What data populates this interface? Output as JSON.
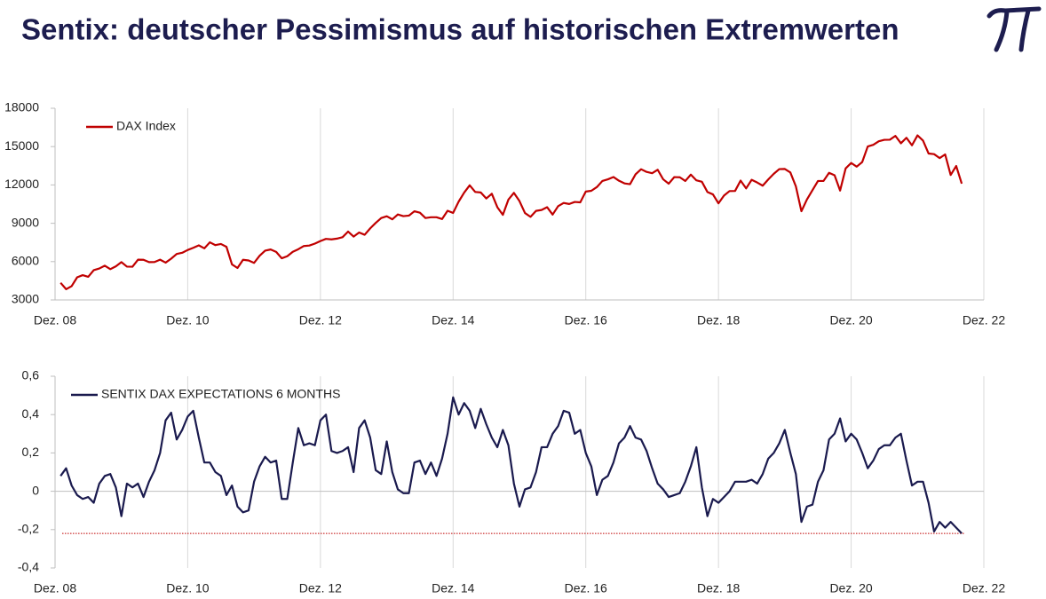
{
  "title": "Sentix: deutscher Pessimismus auf historischen Extremwerten",
  "chart_data": [
    {
      "type": "line",
      "x": [
        "2009-01",
        "2009-02",
        "2009-03",
        "2009-04",
        "2009-05",
        "2009-06",
        "2009-07",
        "2009-08",
        "2009-09",
        "2009-10",
        "2009-11",
        "2009-12",
        "2010-01",
        "2010-02",
        "2010-03",
        "2010-04",
        "2010-05",
        "2010-06",
        "2010-07",
        "2010-08",
        "2010-09",
        "2010-10",
        "2010-11",
        "2010-12",
        "2011-01",
        "2011-02",
        "2011-03",
        "2011-04",
        "2011-05",
        "2011-06",
        "2011-07",
        "2011-08",
        "2011-09",
        "2011-10",
        "2011-11",
        "2011-12",
        "2012-01",
        "2012-02",
        "2012-03",
        "2012-04",
        "2012-05",
        "2012-06",
        "2012-07",
        "2012-08",
        "2012-09",
        "2012-10",
        "2012-11",
        "2012-12",
        "2013-01",
        "2013-02",
        "2013-03",
        "2013-04",
        "2013-05",
        "2013-06",
        "2013-07",
        "2013-08",
        "2013-09",
        "2013-10",
        "2013-11",
        "2013-12",
        "2014-01",
        "2014-02",
        "2014-03",
        "2014-04",
        "2014-05",
        "2014-06",
        "2014-07",
        "2014-08",
        "2014-09",
        "2014-10",
        "2014-11",
        "2014-12",
        "2015-01",
        "2015-02",
        "2015-03",
        "2015-04",
        "2015-05",
        "2015-06",
        "2015-07",
        "2015-08",
        "2015-09",
        "2015-10",
        "2015-11",
        "2015-12",
        "2016-01",
        "2016-02",
        "2016-03",
        "2016-04",
        "2016-05",
        "2016-06",
        "2016-07",
        "2016-08",
        "2016-09",
        "2016-10",
        "2016-11",
        "2016-12",
        "2017-01",
        "2017-02",
        "2017-03",
        "2017-04",
        "2017-05",
        "2017-06",
        "2017-07",
        "2017-08",
        "2017-09",
        "2017-10",
        "2017-11",
        "2017-12",
        "2018-01",
        "2018-02",
        "2018-03",
        "2018-04",
        "2018-05",
        "2018-06",
        "2018-07",
        "2018-08",
        "2018-09",
        "2018-10",
        "2018-11",
        "2018-12",
        "2019-01",
        "2019-02",
        "2019-03",
        "2019-04",
        "2019-05",
        "2019-06",
        "2019-07",
        "2019-08",
        "2019-09",
        "2019-10",
        "2019-11",
        "2019-12",
        "2020-01",
        "2020-02",
        "2020-03",
        "2020-04",
        "2020-05",
        "2020-06",
        "2020-07",
        "2020-08",
        "2020-09",
        "2020-10",
        "2020-11",
        "2020-12",
        "2021-01",
        "2021-02",
        "2021-03",
        "2021-04",
        "2021-05",
        "2021-06",
        "2021-07",
        "2021-08",
        "2021-09",
        "2021-10",
        "2021-11",
        "2021-12",
        "2022-01",
        "2022-02",
        "2022-03",
        "2022-04",
        "2022-05",
        "2022-06",
        "2022-07",
        "2022-08"
      ],
      "xlim": [
        "2008-12",
        "2022-12"
      ],
      "xticks": [
        {
          "value": "2008-12",
          "label": "Dez. 08"
        },
        {
          "value": "2010-12",
          "label": "Dez. 10"
        },
        {
          "value": "2012-12",
          "label": "Dez. 12"
        },
        {
          "value": "2014-12",
          "label": "Dez. 14"
        },
        {
          "value": "2016-12",
          "label": "Dez. 16"
        },
        {
          "value": "2018-12",
          "label": "Dez. 18"
        },
        {
          "value": "2020-12",
          "label": "Dez. 20"
        },
        {
          "value": "2022-12",
          "label": "Dez. 22"
        }
      ],
      "ylim": [
        3000,
        18000
      ],
      "yticks": [
        3000,
        6000,
        9000,
        12000,
        15000,
        18000
      ],
      "grid": "x",
      "legend": "upper left",
      "series": [
        {
          "name": "DAX Index",
          "color": "#c00000",
          "values": [
            4340,
            3840,
            4080,
            4770,
            4940,
            4810,
            5330,
            5460,
            5680,
            5410,
            5630,
            5960,
            5610,
            5600,
            6150,
            6140,
            5960,
            5970,
            6150,
            5920,
            6230,
            6600,
            6690,
            6910,
            7080,
            7270,
            7040,
            7510,
            7290,
            7380,
            7160,
            5780,
            5500,
            6140,
            6090,
            5900,
            6460,
            6860,
            6950,
            6760,
            6260,
            6420,
            6770,
            6970,
            7220,
            7260,
            7410,
            7610,
            7780,
            7740,
            7800,
            7910,
            8350,
            7960,
            8280,
            8100,
            8600,
            9030,
            9410,
            9550,
            9310,
            9690,
            9560,
            9600,
            9940,
            9830,
            9410,
            9470,
            9470,
            9330,
            9980,
            9810,
            10690,
            11400,
            11970,
            11450,
            11410,
            10940,
            11310,
            10260,
            9660,
            10850,
            11380,
            10740,
            9800,
            9500,
            9970,
            10040,
            10260,
            9680,
            10340,
            10590,
            10510,
            10670,
            10640,
            11480,
            11540,
            11830,
            12310,
            12440,
            12620,
            12330,
            12120,
            12060,
            12830,
            13230,
            13020,
            12920,
            13190,
            12440,
            12100,
            12610,
            12600,
            12310,
            12810,
            12360,
            12250,
            11450,
            11260,
            10560,
            11170,
            11520,
            11530,
            12340,
            11730,
            12400,
            12190,
            11940,
            12430,
            12870,
            13240,
            13250,
            12980,
            11890,
            9940,
            10860,
            11590,
            12310,
            12310,
            12950,
            12760,
            11560,
            13290,
            13720,
            13430,
            13790,
            15010,
            15140,
            15420,
            15530,
            15540,
            15840,
            15260,
            15690,
            15100,
            15880,
            15470,
            14460,
            14410,
            14100,
            14390,
            12780,
            13480,
            12100
          ]
        }
      ]
    },
    {
      "type": "line",
      "x": [
        "2009-01",
        "2009-02",
        "2009-03",
        "2009-04",
        "2009-05",
        "2009-06",
        "2009-07",
        "2009-08",
        "2009-09",
        "2009-10",
        "2009-11",
        "2009-12",
        "2010-01",
        "2010-02",
        "2010-03",
        "2010-04",
        "2010-05",
        "2010-06",
        "2010-07",
        "2010-08",
        "2010-09",
        "2010-10",
        "2010-11",
        "2010-12",
        "2011-01",
        "2011-02",
        "2011-03",
        "2011-04",
        "2011-05",
        "2011-06",
        "2011-07",
        "2011-08",
        "2011-09",
        "2011-10",
        "2011-11",
        "2011-12",
        "2012-01",
        "2012-02",
        "2012-03",
        "2012-04",
        "2012-05",
        "2012-06",
        "2012-07",
        "2012-08",
        "2012-09",
        "2012-10",
        "2012-11",
        "2012-12",
        "2013-01",
        "2013-02",
        "2013-03",
        "2013-04",
        "2013-05",
        "2013-06",
        "2013-07",
        "2013-08",
        "2013-09",
        "2013-10",
        "2013-11",
        "2013-12",
        "2014-01",
        "2014-02",
        "2014-03",
        "2014-04",
        "2014-05",
        "2014-06",
        "2014-07",
        "2014-08",
        "2014-09",
        "2014-10",
        "2014-11",
        "2014-12",
        "2015-01",
        "2015-02",
        "2015-03",
        "2015-04",
        "2015-05",
        "2015-06",
        "2015-07",
        "2015-08",
        "2015-09",
        "2015-10",
        "2015-11",
        "2015-12",
        "2016-01",
        "2016-02",
        "2016-03",
        "2016-04",
        "2016-05",
        "2016-06",
        "2016-07",
        "2016-08",
        "2016-09",
        "2016-10",
        "2016-11",
        "2016-12",
        "2017-01",
        "2017-02",
        "2017-03",
        "2017-04",
        "2017-05",
        "2017-06",
        "2017-07",
        "2017-08",
        "2017-09",
        "2017-10",
        "2017-11",
        "2017-12",
        "2018-01",
        "2018-02",
        "2018-03",
        "2018-04",
        "2018-05",
        "2018-06",
        "2018-07",
        "2018-08",
        "2018-09",
        "2018-10",
        "2018-11",
        "2018-12",
        "2019-01",
        "2019-02",
        "2019-03",
        "2019-04",
        "2019-05",
        "2019-06",
        "2019-07",
        "2019-08",
        "2019-09",
        "2019-10",
        "2019-11",
        "2019-12",
        "2020-01",
        "2020-02",
        "2020-03",
        "2020-04",
        "2020-05",
        "2020-06",
        "2020-07",
        "2020-08",
        "2020-09",
        "2020-10",
        "2020-11",
        "2020-12",
        "2021-01",
        "2021-02",
        "2021-03",
        "2021-04",
        "2021-05",
        "2021-06",
        "2021-07",
        "2021-08",
        "2021-09",
        "2021-10",
        "2021-11",
        "2021-12",
        "2022-01",
        "2022-02",
        "2022-03",
        "2022-04",
        "2022-05",
        "2022-06",
        "2022-07",
        "2022-08"
      ],
      "xlim": [
        "2008-12",
        "2022-12"
      ],
      "xticks": [
        {
          "value": "2008-12",
          "label": "Dez. 08"
        },
        {
          "value": "2010-12",
          "label": "Dez. 10"
        },
        {
          "value": "2012-12",
          "label": "Dez. 12"
        },
        {
          "value": "2014-12",
          "label": "Dez. 14"
        },
        {
          "value": "2016-12",
          "label": "Dez. 16"
        },
        {
          "value": "2018-12",
          "label": "Dez. 18"
        },
        {
          "value": "2020-12",
          "label": "Dez. 20"
        },
        {
          "value": "2022-12",
          "label": "Dez. 22"
        }
      ],
      "ylim": [
        -0.4,
        0.6
      ],
      "yticks": [
        {
          "value": -0.4,
          "label": "-0,4"
        },
        {
          "value": -0.2,
          "label": "-0,2"
        },
        0,
        {
          "value": 0.2,
          "label": "0,2"
        },
        {
          "value": 0.4,
          "label": "0,4"
        },
        {
          "value": 0.6,
          "label": "0,6"
        }
      ],
      "grid": "x",
      "legend": "upper left",
      "reference_line": {
        "value": -0.22,
        "color": "#c00000"
      },
      "series": [
        {
          "name": "SENTIX DAX EXPECTATIONS 6 MONTHS",
          "color": "#1a1a4e",
          "values": [
            0.08,
            0.12,
            0.03,
            -0.02,
            -0.04,
            -0.03,
            -0.06,
            0.04,
            0.08,
            0.09,
            0.02,
            -0.13,
            0.04,
            0.02,
            0.04,
            -0.03,
            0.05,
            0.11,
            0.2,
            0.37,
            0.41,
            0.27,
            0.32,
            0.39,
            0.42,
            0.28,
            0.15,
            0.15,
            0.1,
            0.08,
            -0.02,
            0.03,
            -0.08,
            -0.11,
            -0.1,
            0.05,
            0.13,
            0.18,
            0.15,
            0.16,
            -0.04,
            -0.04,
            0.15,
            0.33,
            0.24,
            0.25,
            0.24,
            0.37,
            0.4,
            0.21,
            0.2,
            0.21,
            0.23,
            0.1,
            0.33,
            0.37,
            0.28,
            0.11,
            0.09,
            0.26,
            0.1,
            0.01,
            -0.01,
            -0.01,
            0.15,
            0.16,
            0.09,
            0.15,
            0.08,
            0.17,
            0.3,
            0.49,
            0.4,
            0.46,
            0.42,
            0.33,
            0.43,
            0.35,
            0.28,
            0.23,
            0.32,
            0.24,
            0.04,
            -0.08,
            0.01,
            0.02,
            0.1,
            0.23,
            0.23,
            0.3,
            0.34,
            0.42,
            0.41,
            0.3,
            0.32,
            0.2,
            0.13,
            -0.02,
            0.06,
            0.08,
            0.15,
            0.25,
            0.28,
            0.34,
            0.28,
            0.27,
            0.21,
            0.12,
            0.04,
            0.01,
            -0.03,
            -0.02,
            -0.01,
            0.05,
            0.13,
            0.23,
            0.02,
            -0.13,
            -0.04,
            -0.06,
            -0.03,
            0.0,
            0.05,
            0.05,
            0.05,
            0.06,
            0.04,
            0.09,
            0.17,
            0.2,
            0.25,
            0.32,
            0.2,
            0.09,
            -0.16,
            -0.08,
            -0.07,
            0.05,
            0.11,
            0.27,
            0.3,
            0.38,
            0.26,
            0.3,
            0.27,
            0.2,
            0.12,
            0.16,
            0.22,
            0.24,
            0.24,
            0.28,
            0.3,
            0.16,
            0.03,
            0.05,
            0.05,
            -0.06,
            -0.21,
            -0.16,
            -0.19,
            -0.16,
            -0.19,
            -0.22
          ]
        }
      ]
    }
  ]
}
